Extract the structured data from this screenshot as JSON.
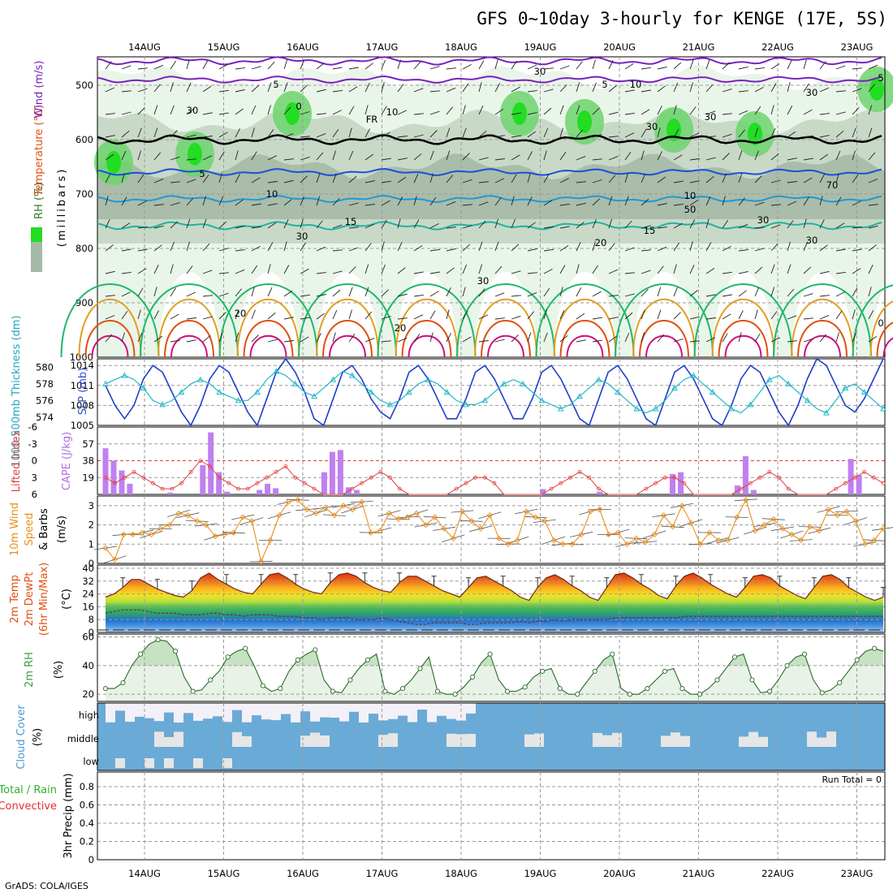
{
  "title": "GFS 0~10day 3-hourly for KENGE (17E, 5S)",
  "footer": "GrADS: COLA/IGES",
  "dates": [
    "14AUG",
    "15AUG",
    "16AUG",
    "17AUG",
    "18AUG",
    "19AUG",
    "20AUG",
    "21AUG",
    "22AUG",
    "23AUG"
  ],
  "colors": {
    "rh_light": "#e8f4e8",
    "rh_mid": "#c4d6c4",
    "rh_dark": "#a6b8a6",
    "rh_green": "#6dd36d",
    "rh_bright": "#22dd22",
    "temp_purple": "#7a22c0",
    "temp_blue": "#1c4fd8",
    "temp_cyan": "#1f9ad6",
    "temp_teal": "#22b2a0",
    "temp_green": "#1fb86a",
    "temp_orange": "#e0a020",
    "temp_red": "#e05010",
    "temp_magenta": "#d0107a",
    "slp": "#1f3fc8",
    "thickness": "#22b8c8",
    "lifted": "#e04040",
    "cape": "#c080f0",
    "wind10m": "#e89020",
    "rh2m": "#60b860",
    "cloud": "#6aaad6",
    "cloud_clear": "#f4f0f8"
  },
  "panels": {
    "upper_air": {
      "ylabel_rh": "RH (%)",
      "ylabel_temp": "Temperature (°C)",
      "ylabel_wind": "Wind (m/s)",
      "ylabel_mb": "(millibars)",
      "pressure_ticks": [
        "500",
        "600",
        "700",
        "800",
        "900",
        "1000"
      ],
      "contour_labels": [
        "5",
        "5",
        "5",
        "5",
        "0",
        "10",
        "10",
        "15",
        "15",
        "20",
        "20",
        "20",
        "0"
      ],
      "freezing_label": "FR",
      "rh_labels": [
        "30",
        "30",
        "10",
        "30",
        "30",
        "30",
        "10",
        "50",
        "30",
        "30",
        "30",
        "30",
        "70"
      ]
    },
    "pressure": {
      "ylabel_thickness": "1000-500mb Thickness (dm)",
      "ylabel_slp": "SLP (mb)",
      "thickness_ticks": [
        "580",
        "578",
        "576",
        "574"
      ],
      "slp_ticks": [
        "1014",
        "1011",
        "1008",
        "1005"
      ]
    },
    "stability": {
      "ylabel_li": "Lifted Index",
      "ylabel_cape": "CAPE (J/kg)",
      "li_ticks": [
        "-6",
        "-3",
        "0",
        "3",
        "6"
      ],
      "cape_ticks": [
        "57",
        "38",
        "19"
      ]
    },
    "wind10m": {
      "ylabel_a": "10m Wind",
      "ylabel_b": "Speed",
      "ylabel_c": "& Barbs",
      "ylabel_unit": "(m/s)",
      "ticks": [
        "3",
        "2",
        "1",
        "0"
      ]
    },
    "temp2m": {
      "ylabel_a": "2m Temp",
      "ylabel_b": "2m DewPt",
      "ylabel_c": "(6hr Min/Max)",
      "ylabel_unit": "(°C)",
      "ticks": [
        "40",
        "32",
        "24",
        "16",
        "8",
        "0"
      ]
    },
    "rh2m": {
      "ylabel": "2m RH",
      "ylabel_unit": "(%)",
      "ticks": [
        "60",
        "40",
        "20"
      ]
    },
    "cloud": {
      "ylabel": "Cloud Cover",
      "ylabel_unit": "(%)",
      "levels": [
        "high",
        "middle",
        "low"
      ]
    },
    "precip": {
      "ylabel_total": "Total / Rain",
      "ylabel_conv": "Convective",
      "ylabel_unit": "3hr Precip (mm)",
      "run_total": "Run Total = 0",
      "ticks": [
        "0.8",
        "0.6",
        "0.4",
        "0.2",
        "0"
      ]
    }
  },
  "chart_data": {
    "type": "meteogram",
    "x": "3-hourly forecast times, 14AUG to 23AUG",
    "series": [
      {
        "name": "SLP (mb)",
        "ylim": [
          1005,
          1015
        ],
        "values": [
          1011,
          1008,
          1006,
          1008,
          1012,
          1014,
          1013,
          1010,
          1007,
          1005,
          1008,
          1012,
          1014,
          1013,
          1010,
          1007,
          1005,
          1009,
          1013,
          1015,
          1013,
          1010,
          1006,
          1005,
          1009,
          1013,
          1014,
          1012,
          1009,
          1007,
          1006,
          1009,
          1013,
          1014,
          1012,
          1009,
          1006,
          1006,
          1009,
          1013,
          1014,
          1012,
          1009,
          1006,
          1006,
          1009,
          1013,
          1014,
          1012,
          1009,
          1006,
          1005,
          1009,
          1013,
          1014,
          1012,
          1009,
          1006,
          1005,
          1009,
          1013,
          1014,
          1012,
          1009,
          1006,
          1005,
          1008,
          1012,
          1014,
          1013,
          1010,
          1007,
          1005,
          1008,
          1012,
          1015,
          1014,
          1011,
          1008,
          1007,
          1009,
          1012,
          1015
        ]
      },
      {
        "name": "1000-500mb Thickness (dm)",
        "ylim": [
          573,
          581
        ],
        "values": [
          578,
          578.5,
          579,
          578.5,
          577.5,
          576,
          575.5,
          576,
          577,
          578,
          578.5,
          578,
          577,
          576.5,
          576,
          576,
          577,
          578.5,
          579.5,
          579,
          578,
          577,
          576.5,
          577.5,
          578.5,
          579.5,
          579,
          578,
          577,
          576,
          575.5,
          576,
          577,
          578,
          578.5,
          578,
          577,
          576,
          575.5,
          575.5,
          576,
          577,
          578,
          578.5,
          578,
          577,
          576,
          575.5,
          575,
          575.5,
          576.5,
          577.5,
          578.5,
          578,
          577,
          576,
          575,
          574.5,
          575,
          576,
          577.5,
          578.5,
          579,
          578,
          577,
          576,
          575,
          574.5,
          575.5,
          577,
          578.5,
          579,
          578,
          577,
          576,
          575,
          574.5,
          576,
          577.5,
          578,
          577,
          576,
          575
        ]
      },
      {
        "name": "Lifted Index",
        "ylim": [
          6,
          -6
        ],
        "values": [
          3,
          4,
          3,
          2,
          3,
          4,
          5,
          5,
          4,
          2,
          0,
          1,
          3,
          4,
          5,
          5,
          4,
          3,
          2,
          1,
          3,
          4,
          5,
          6,
          6,
          6,
          5,
          4,
          3,
          2,
          3,
          5,
          6,
          6,
          6,
          6,
          6,
          5,
          4,
          3,
          3,
          4,
          6,
          6,
          6,
          6,
          6,
          5,
          4,
          3,
          2,
          3,
          5,
          6,
          6,
          6,
          6,
          5,
          4,
          3,
          3,
          4,
          6,
          6,
          6,
          6,
          6,
          5,
          4,
          3,
          2,
          3,
          5,
          6,
          6,
          6,
          6,
          5,
          4,
          3,
          2,
          3,
          4
        ]
      },
      {
        "name": "CAPE (J/kg)",
        "ylim": [
          0,
          76
        ],
        "values": [
          52,
          38,
          27,
          12,
          0,
          0,
          0,
          0,
          2,
          0,
          0,
          0,
          33,
          70,
          25,
          3,
          0,
          0,
          0,
          5,
          12,
          7,
          0,
          0,
          0,
          0,
          0,
          25,
          48,
          50,
          8,
          5,
          0,
          0,
          0,
          0,
          0,
          0,
          0,
          0,
          0,
          0,
          0,
          0,
          0,
          0,
          0,
          0,
          0,
          0,
          0,
          0,
          0,
          0,
          6,
          0,
          0,
          0,
          0,
          0,
          0,
          3,
          0,
          0,
          0,
          0,
          0,
          0,
          0,
          0,
          23,
          25,
          0,
          0,
          0,
          0,
          0,
          0,
          10,
          43,
          5,
          0,
          0,
          0,
          0,
          0,
          0,
          0,
          0,
          0,
          0,
          0,
          40,
          22,
          0,
          0,
          0
        ]
      },
      {
        "name": "10m Wind Speed (m/s)",
        "ylim": [
          0,
          3.5
        ],
        "values": [
          0.8,
          0.2,
          1.5,
          1.5,
          1.6,
          1.5,
          1.8,
          2.0,
          2.6,
          2.5,
          2.2,
          2.0,
          1.4,
          1.5,
          1.6,
          2.4,
          2.2,
          0.1,
          1.2,
          2.5,
          3.2,
          3.3,
          2.8,
          2.6,
          2.9,
          2.5,
          3.0,
          2.8,
          3.2,
          1.6,
          1.7,
          2.6,
          2.3,
          2.4,
          2.6,
          2.0,
          2.4,
          1.8,
          1.3,
          2.7,
          2.2,
          1.8,
          2.5,
          1.3,
          1.0,
          1.2,
          2.7,
          2.4,
          2.2,
          1.2,
          1.0,
          1.0,
          1.5,
          2.7,
          2.8,
          1.5,
          1.6,
          1.0,
          1.3,
          1.1,
          1.5,
          2.5,
          1.9,
          3.0,
          2.1,
          1.0,
          1.6,
          1.2,
          1.2,
          2.4,
          3.3,
          1.7,
          2.0,
          2.3,
          1.8,
          1.5,
          1.2,
          1.9,
          1.7,
          2.8,
          2.5,
          2.7,
          2.2,
          1.0,
          1.2,
          1.8
        ]
      },
      {
        "name": "2m Temp (°C)",
        "ylim": [
          0,
          42
        ],
        "values": [
          22,
          24,
          28,
          33,
          33,
          30,
          27,
          25,
          23,
          22,
          26,
          34,
          37,
          33,
          30,
          27,
          25,
          24,
          30,
          36,
          37,
          34,
          30,
          27,
          25,
          24,
          31,
          36,
          37,
          35,
          31,
          28,
          26,
          25,
          31,
          35,
          35,
          32,
          29,
          26,
          24,
          22,
          28,
          34,
          35,
          32,
          29,
          26,
          22,
          20,
          28,
          34,
          36,
          33,
          29,
          26,
          22,
          20,
          28,
          36,
          37,
          34,
          30,
          27,
          23,
          21,
          29,
          35,
          37,
          34,
          30,
          27,
          24,
          22,
          28,
          35,
          36,
          34,
          29,
          26,
          23,
          21,
          28,
          35,
          36,
          33,
          28,
          25,
          22,
          20,
          22
        ]
      },
      {
        "name": "2m DewPt (°C)",
        "ylim": [
          0,
          42
        ],
        "values": [
          12,
          13,
          14,
          14,
          14,
          13,
          12,
          12,
          12,
          11,
          11,
          11,
          12,
          12,
          11,
          11,
          10,
          11,
          11,
          11,
          10,
          10,
          10,
          9,
          9,
          8,
          9,
          9,
          9,
          8,
          8,
          8,
          9,
          8,
          7,
          6,
          5,
          5,
          6,
          6,
          6,
          6,
          5,
          5,
          6,
          6,
          6,
          6,
          7,
          6,
          7,
          7,
          8,
          7,
          8,
          8,
          8,
          8,
          8,
          9,
          9,
          9,
          9,
          9,
          9,
          9,
          9,
          10,
          10,
          10,
          10,
          10,
          10,
          10,
          10,
          10,
          10,
          10,
          10,
          10,
          10,
          10,
          10,
          10,
          10,
          10,
          10,
          10,
          10,
          10,
          10
        ]
      },
      {
        "name": "2m RH (%)",
        "ylim": [
          15,
          62
        ],
        "values": [
          24,
          24,
          28,
          40,
          48,
          55,
          58,
          57,
          50,
          32,
          22,
          23,
          30,
          36,
          46,
          50,
          52,
          40,
          26,
          22,
          24,
          36,
          44,
          48,
          51,
          30,
          22,
          21,
          30,
          38,
          44,
          48,
          22,
          20,
          24,
          30,
          38,
          46,
          22,
          20,
          20,
          25,
          32,
          42,
          48,
          30,
          22,
          22,
          25,
          32,
          36,
          38,
          24,
          20,
          20,
          28,
          36,
          44,
          48,
          24,
          20,
          20,
          24,
          30,
          36,
          38,
          24,
          20,
          20,
          24,
          30,
          38,
          46,
          48,
          30,
          21,
          22,
          30,
          40,
          46,
          48,
          30,
          21,
          23,
          28,
          36,
          44,
          50,
          52,
          50
        ]
      }
    ],
    "run_total_mm": 0
  }
}
